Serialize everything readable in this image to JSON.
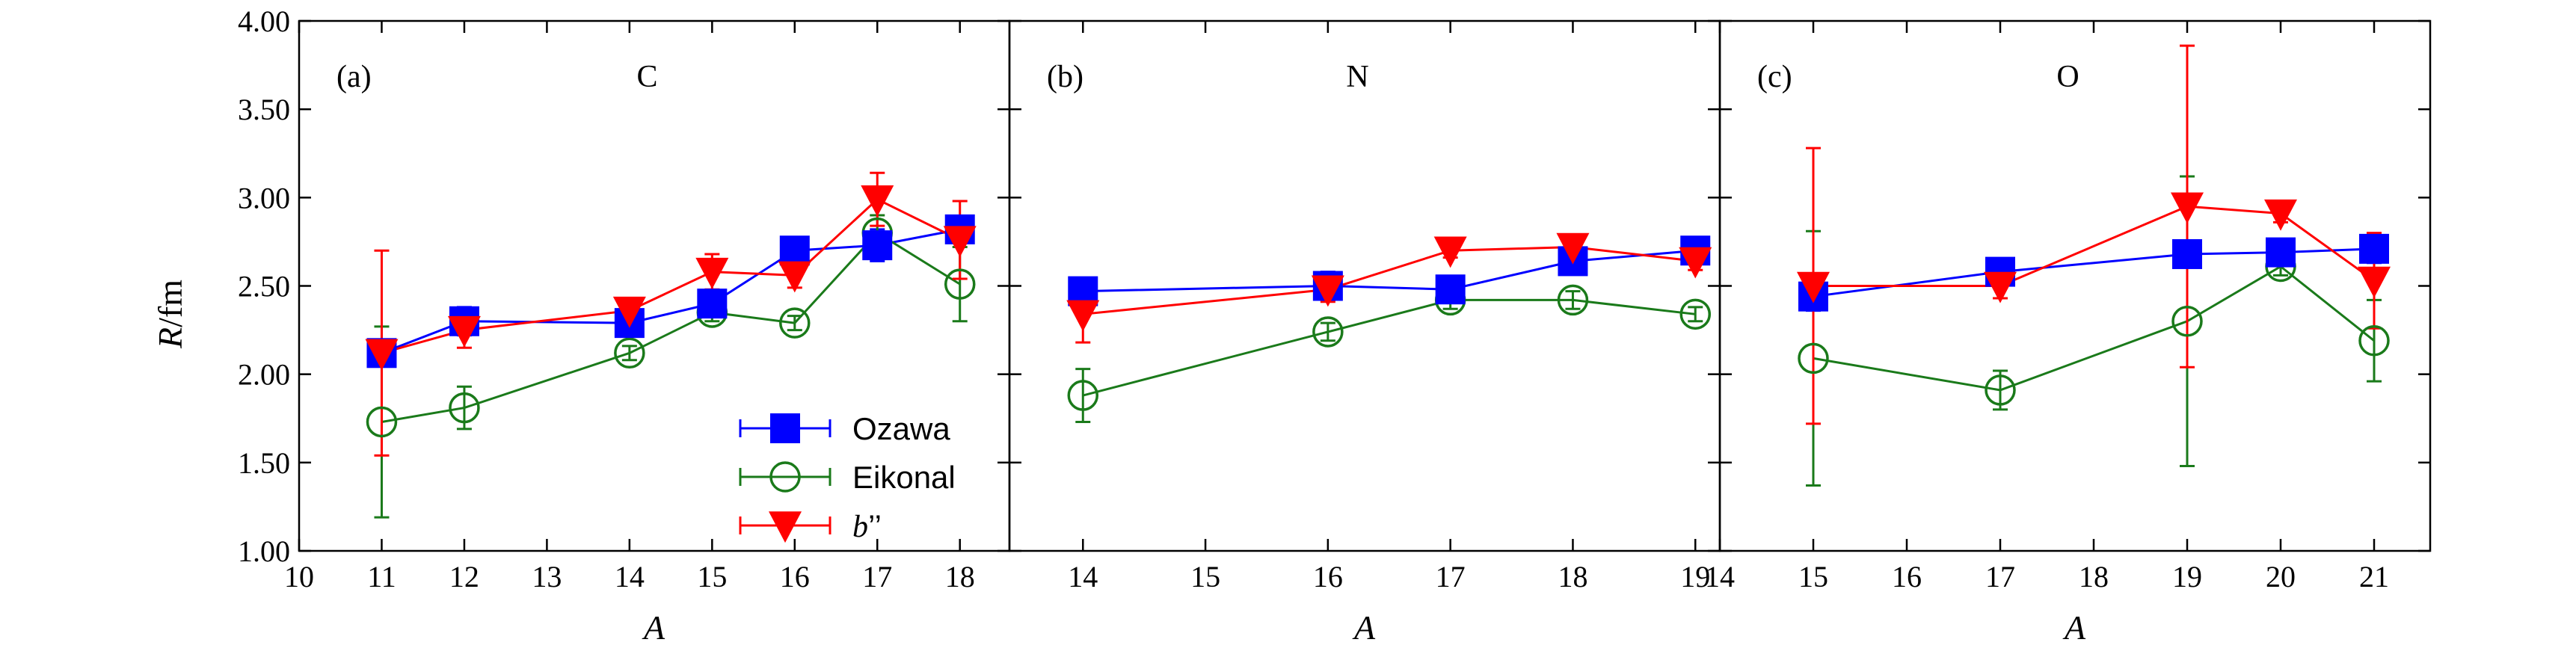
{
  "colors": {
    "Ozawa": "#0000ff",
    "Eikonal": "#1a7a1a",
    "b": "#ff0000"
  },
  "shared": {
    "ylabel_italic": "R",
    "ylabel_rest": "/fm",
    "xlabel": "A",
    "ylim": [
      1.0,
      4.0
    ],
    "yticks": [
      "1.00",
      "1.50",
      "2.00",
      "2.50",
      "3.00",
      "3.50",
      "4.00"
    ]
  },
  "legend": {
    "ozawa": "Ozawa",
    "eikonal": "Eikonal",
    "b_italic": "b",
    "b_rest": "’’",
    "placement": "lower-right of panel (a)"
  },
  "chart_data": [
    {
      "type": "scatter",
      "panel_letter": "(a)",
      "element": "C",
      "xlim": [
        10,
        18.6
      ],
      "xticks": [
        10,
        11,
        12,
        13,
        14,
        15,
        16,
        17,
        18
      ],
      "series": [
        {
          "key": "Ozawa",
          "name": "Ozawa",
          "x": [
            11,
            12,
            14,
            15,
            16,
            17,
            18
          ],
          "y": [
            2.12,
            2.3,
            2.29,
            2.4,
            2.7,
            2.73,
            2.82
          ],
          "err": [
            0.06,
            0.08,
            0.04,
            0.06,
            0.05,
            0.09,
            0.05
          ]
        },
        {
          "key": "Eikonal",
          "name": "Eikonal",
          "x": [
            11,
            12,
            14,
            15,
            16,
            17,
            18
          ],
          "y": [
            1.73,
            1.81,
            2.12,
            2.35,
            2.29,
            2.8,
            2.51
          ],
          "err": [
            0.54,
            0.12,
            0.04,
            0.05,
            0.04,
            0.1,
            0.21
          ]
        },
        {
          "key": "b",
          "name": "b’’",
          "x": [
            11,
            12,
            14,
            15,
            16,
            17,
            18
          ],
          "y": [
            2.12,
            2.25,
            2.36,
            2.58,
            2.56,
            2.99,
            2.76
          ],
          "err": [
            0.58,
            0.1,
            0.06,
            0.1,
            0.07,
            0.15,
            0.22
          ]
        }
      ]
    },
    {
      "type": "scatter",
      "panel_letter": "(b)",
      "element": "N",
      "xlim": [
        13.4,
        19.2
      ],
      "xticks": [
        14,
        15,
        16,
        17,
        18,
        19
      ],
      "series": [
        {
          "key": "Ozawa",
          "name": "Ozawa",
          "x": [
            14,
            16,
            17,
            18,
            19
          ],
          "y": [
            2.47,
            2.5,
            2.48,
            2.64,
            2.7
          ],
          "err": [
            0.03,
            0.08,
            0.06,
            0.05,
            0.04
          ]
        },
        {
          "key": "Eikonal",
          "name": "Eikonal",
          "x": [
            14,
            16,
            17,
            18,
            19
          ],
          "y": [
            1.88,
            2.24,
            2.42,
            2.42,
            2.34
          ],
          "err": [
            0.15,
            0.05,
            0.05,
            0.05,
            0.04
          ]
        },
        {
          "key": "b",
          "name": "b’’",
          "x": [
            14,
            16,
            17,
            18,
            19
          ],
          "y": [
            2.34,
            2.48,
            2.7,
            2.72,
            2.64
          ],
          "err": [
            0.16,
            0.07,
            0.04,
            0.04,
            0.05
          ]
        }
      ]
    },
    {
      "type": "scatter",
      "panel_letter": "(c)",
      "element": "O",
      "xlim": [
        14,
        21.6
      ],
      "xticks": [
        14,
        15,
        16,
        17,
        18,
        19,
        20,
        21
      ],
      "series": [
        {
          "key": "Ozawa",
          "name": "Ozawa",
          "x": [
            15,
            17,
            19,
            20,
            21
          ],
          "y": [
            2.44,
            2.58,
            2.68,
            2.69,
            2.71
          ],
          "err": [
            0.08,
            0.06,
            0.06,
            0.07,
            0.08
          ]
        },
        {
          "key": "Eikonal",
          "name": "Eikonal",
          "x": [
            15,
            17,
            19,
            20,
            21
          ],
          "y": [
            2.09,
            1.91,
            2.3,
            2.61,
            2.19
          ],
          "err": [
            0.72,
            0.11,
            0.82,
            0.05,
            0.23
          ]
        },
        {
          "key": "b",
          "name": "b’’",
          "x": [
            15,
            17,
            19,
            20,
            21
          ],
          "y": [
            2.5,
            2.5,
            2.95,
            2.91,
            2.53
          ],
          "err": [
            0.78,
            0.07,
            0.91,
            0.05,
            0.27
          ]
        }
      ]
    }
  ]
}
